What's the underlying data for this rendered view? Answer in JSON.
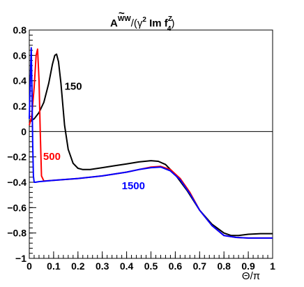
{
  "chart_data": {
    "type": "line",
    "title": "Ã^WW/(γ² Im f_4^Z)",
    "title_parts": {
      "main": "A",
      "accent": "~",
      "sup": "WW",
      "paren_open": "/(γ",
      "gamma_sup": "2",
      "im": " Im f",
      "f_sup": "Z",
      "f_sub": "4",
      "paren_close": ")"
    },
    "xlabel": "Θ/π",
    "ylabel": "",
    "xlim": [
      0,
      1
    ],
    "ylim": [
      -1,
      0.8
    ],
    "x_ticks": [
      "0",
      "0.1",
      "0.2",
      "0.3",
      "0.4",
      "0.5",
      "0.6",
      "0.7",
      "0.8",
      "0.9",
      "1"
    ],
    "x_tick_values": [
      0,
      0.1,
      0.2,
      0.3,
      0.4,
      0.5,
      0.6,
      0.7,
      0.8,
      0.9,
      1
    ],
    "y_ticks": [
      "0.8",
      "0.6",
      "0.4",
      "0.2",
      "0",
      "−0.2",
      "−0.4",
      "−0.6",
      "−0.8",
      "−1"
    ],
    "y_tick_values": [
      0.8,
      0.6,
      0.4,
      0.2,
      0,
      -0.2,
      -0.4,
      -0.6,
      -0.8,
      -1
    ],
    "grid": false,
    "zero_line": true,
    "series": [
      {
        "name": "150",
        "color": "#000000",
        "label_at": [
          0.145,
          0.33
        ],
        "x": [
          0,
          0.02,
          0.04,
          0.06,
          0.08,
          0.095,
          0.105,
          0.112,
          0.12,
          0.13,
          0.145,
          0.16,
          0.18,
          0.2,
          0.22,
          0.25,
          0.3,
          0.35,
          0.4,
          0.45,
          0.5,
          0.53,
          0.56,
          0.6,
          0.65,
          0.7,
          0.75,
          0.8,
          0.83,
          0.86,
          0.9,
          0.95,
          1.0
        ],
        "y": [
          0.08,
          0.1,
          0.15,
          0.23,
          0.38,
          0.53,
          0.6,
          0.61,
          0.55,
          0.38,
          0.05,
          -0.14,
          -0.25,
          -0.29,
          -0.3,
          -0.3,
          -0.285,
          -0.27,
          -0.255,
          -0.24,
          -0.23,
          -0.235,
          -0.26,
          -0.34,
          -0.47,
          -0.62,
          -0.73,
          -0.8,
          -0.82,
          -0.82,
          -0.81,
          -0.805,
          -0.805
        ]
      },
      {
        "name": "500",
        "color": "#ff0000",
        "label_at": [
          0.057,
          -0.225
        ],
        "x": [
          0,
          0.01,
          0.02,
          0.028,
          0.034,
          0.04,
          0.045,
          0.05,
          0.06,
          0.1,
          0.2,
          0.3,
          0.4,
          0.45,
          0.5,
          0.54,
          0.58,
          0.62,
          0.66,
          0.7,
          0.75,
          0.8,
          0.85,
          0.9,
          1.0
        ],
        "y": [
          0.05,
          0.12,
          0.35,
          0.6,
          0.65,
          0.4,
          0.0,
          -0.35,
          -0.39,
          -0.385,
          -0.37,
          -0.35,
          -0.32,
          -0.3,
          -0.28,
          -0.275,
          -0.3,
          -0.37,
          -0.48,
          -0.62,
          -0.74,
          -0.82,
          -0.835,
          -0.84,
          -0.84
        ]
      },
      {
        "name": "1500",
        "color": "#0000ff",
        "label_at": [
          0.38,
          -0.455
        ],
        "x": [
          0,
          0.004,
          0.008,
          0.011,
          0.014,
          0.017,
          0.02,
          0.025,
          0.04,
          0.1,
          0.2,
          0.3,
          0.4,
          0.45,
          0.5,
          0.54,
          0.58,
          0.62,
          0.66,
          0.7,
          0.75,
          0.8,
          0.85,
          0.9,
          1.0
        ],
        "y": [
          0.1,
          0.4,
          0.66,
          0.35,
          -0.1,
          -0.35,
          -0.4,
          -0.4,
          -0.395,
          -0.385,
          -0.37,
          -0.35,
          -0.32,
          -0.3,
          -0.285,
          -0.28,
          -0.31,
          -0.38,
          -0.49,
          -0.62,
          -0.74,
          -0.82,
          -0.835,
          -0.84,
          -0.84
        ]
      }
    ]
  }
}
